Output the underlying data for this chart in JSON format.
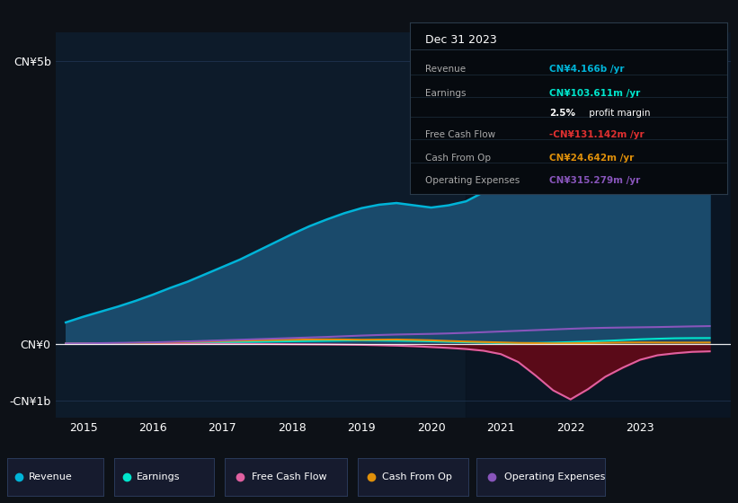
{
  "bg_color": "#0d1117",
  "plot_bg": "#0d1b2a",
  "grid_color": "#253d5e",
  "years": [
    2014.75,
    2015.0,
    2015.25,
    2015.5,
    2015.75,
    2016.0,
    2016.25,
    2016.5,
    2016.75,
    2017.0,
    2017.25,
    2017.5,
    2017.75,
    2018.0,
    2018.25,
    2018.5,
    2018.75,
    2019.0,
    2019.25,
    2019.5,
    2019.75,
    2020.0,
    2020.25,
    2020.5,
    2020.75,
    2021.0,
    2021.25,
    2021.5,
    2021.75,
    2022.0,
    2022.25,
    2022.5,
    2022.75,
    2023.0,
    2023.25,
    2023.5,
    2023.75,
    2024.0
  ],
  "revenue_m": [
    380,
    480,
    570,
    660,
    760,
    870,
    990,
    1100,
    1230,
    1360,
    1490,
    1640,
    1790,
    1940,
    2080,
    2200,
    2310,
    2400,
    2460,
    2490,
    2450,
    2410,
    2450,
    2520,
    2680,
    2950,
    3350,
    3800,
    4150,
    4350,
    4520,
    4580,
    4460,
    4420,
    4500,
    4580,
    4650,
    4700
  ],
  "earnings_m": [
    5,
    8,
    10,
    12,
    14,
    17,
    20,
    23,
    26,
    30,
    33,
    37,
    42,
    47,
    52,
    56,
    60,
    62,
    60,
    57,
    52,
    46,
    38,
    30,
    22,
    16,
    14,
    18,
    24,
    32,
    42,
    54,
    68,
    82,
    92,
    100,
    103,
    104
  ],
  "fcf_m": [
    2,
    3,
    5,
    6,
    7,
    6,
    5,
    4,
    3,
    2,
    1,
    0,
    -2,
    -4,
    -6,
    -8,
    -12,
    -16,
    -22,
    -30,
    -40,
    -55,
    -70,
    -90,
    -120,
    -180,
    -320,
    -560,
    -820,
    -980,
    -800,
    -580,
    -420,
    -280,
    -200,
    -165,
    -140,
    -131
  ],
  "cashop_m": [
    3,
    5,
    8,
    12,
    16,
    22,
    28,
    36,
    44,
    52,
    58,
    64,
    70,
    74,
    78,
    80,
    78,
    74,
    76,
    78,
    72,
    64,
    52,
    42,
    34,
    26,
    18,
    14,
    10,
    12,
    16,
    20,
    24,
    26,
    25,
    24,
    24,
    25
  ],
  "opex_m": [
    8,
    10,
    14,
    18,
    22,
    28,
    36,
    44,
    54,
    64,
    74,
    84,
    94,
    104,
    114,
    124,
    136,
    148,
    158,
    166,
    172,
    178,
    186,
    196,
    208,
    220,
    232,
    244,
    256,
    268,
    278,
    285,
    290,
    294,
    298,
    304,
    310,
    315
  ],
  "revenue_line_color": "#00b4d8",
  "revenue_fill_color": "#1a4a6b",
  "earnings_color": "#00e5cc",
  "fcf_line_color": "#e060a0",
  "fcf_fill_color": "#5a0a18",
  "cashop_color": "#e0900a",
  "opex_color": "#8855bb",
  "zero_line_color": "#ffffff",
  "xlim": [
    2014.6,
    2024.3
  ],
  "ylim_m": [
    -1300,
    5500
  ],
  "ytick_vals_m": [
    -1000,
    0,
    5000
  ],
  "ytick_labels": [
    "-CN¥1b",
    "CN¥0",
    "CN¥5b"
  ],
  "xtick_vals": [
    2015,
    2016,
    2017,
    2018,
    2019,
    2020,
    2021,
    2022,
    2023
  ],
  "highlight_x_start": 2020.5,
  "highlight_x_end": 2024.3,
  "highlight_color": "#08111e"
}
